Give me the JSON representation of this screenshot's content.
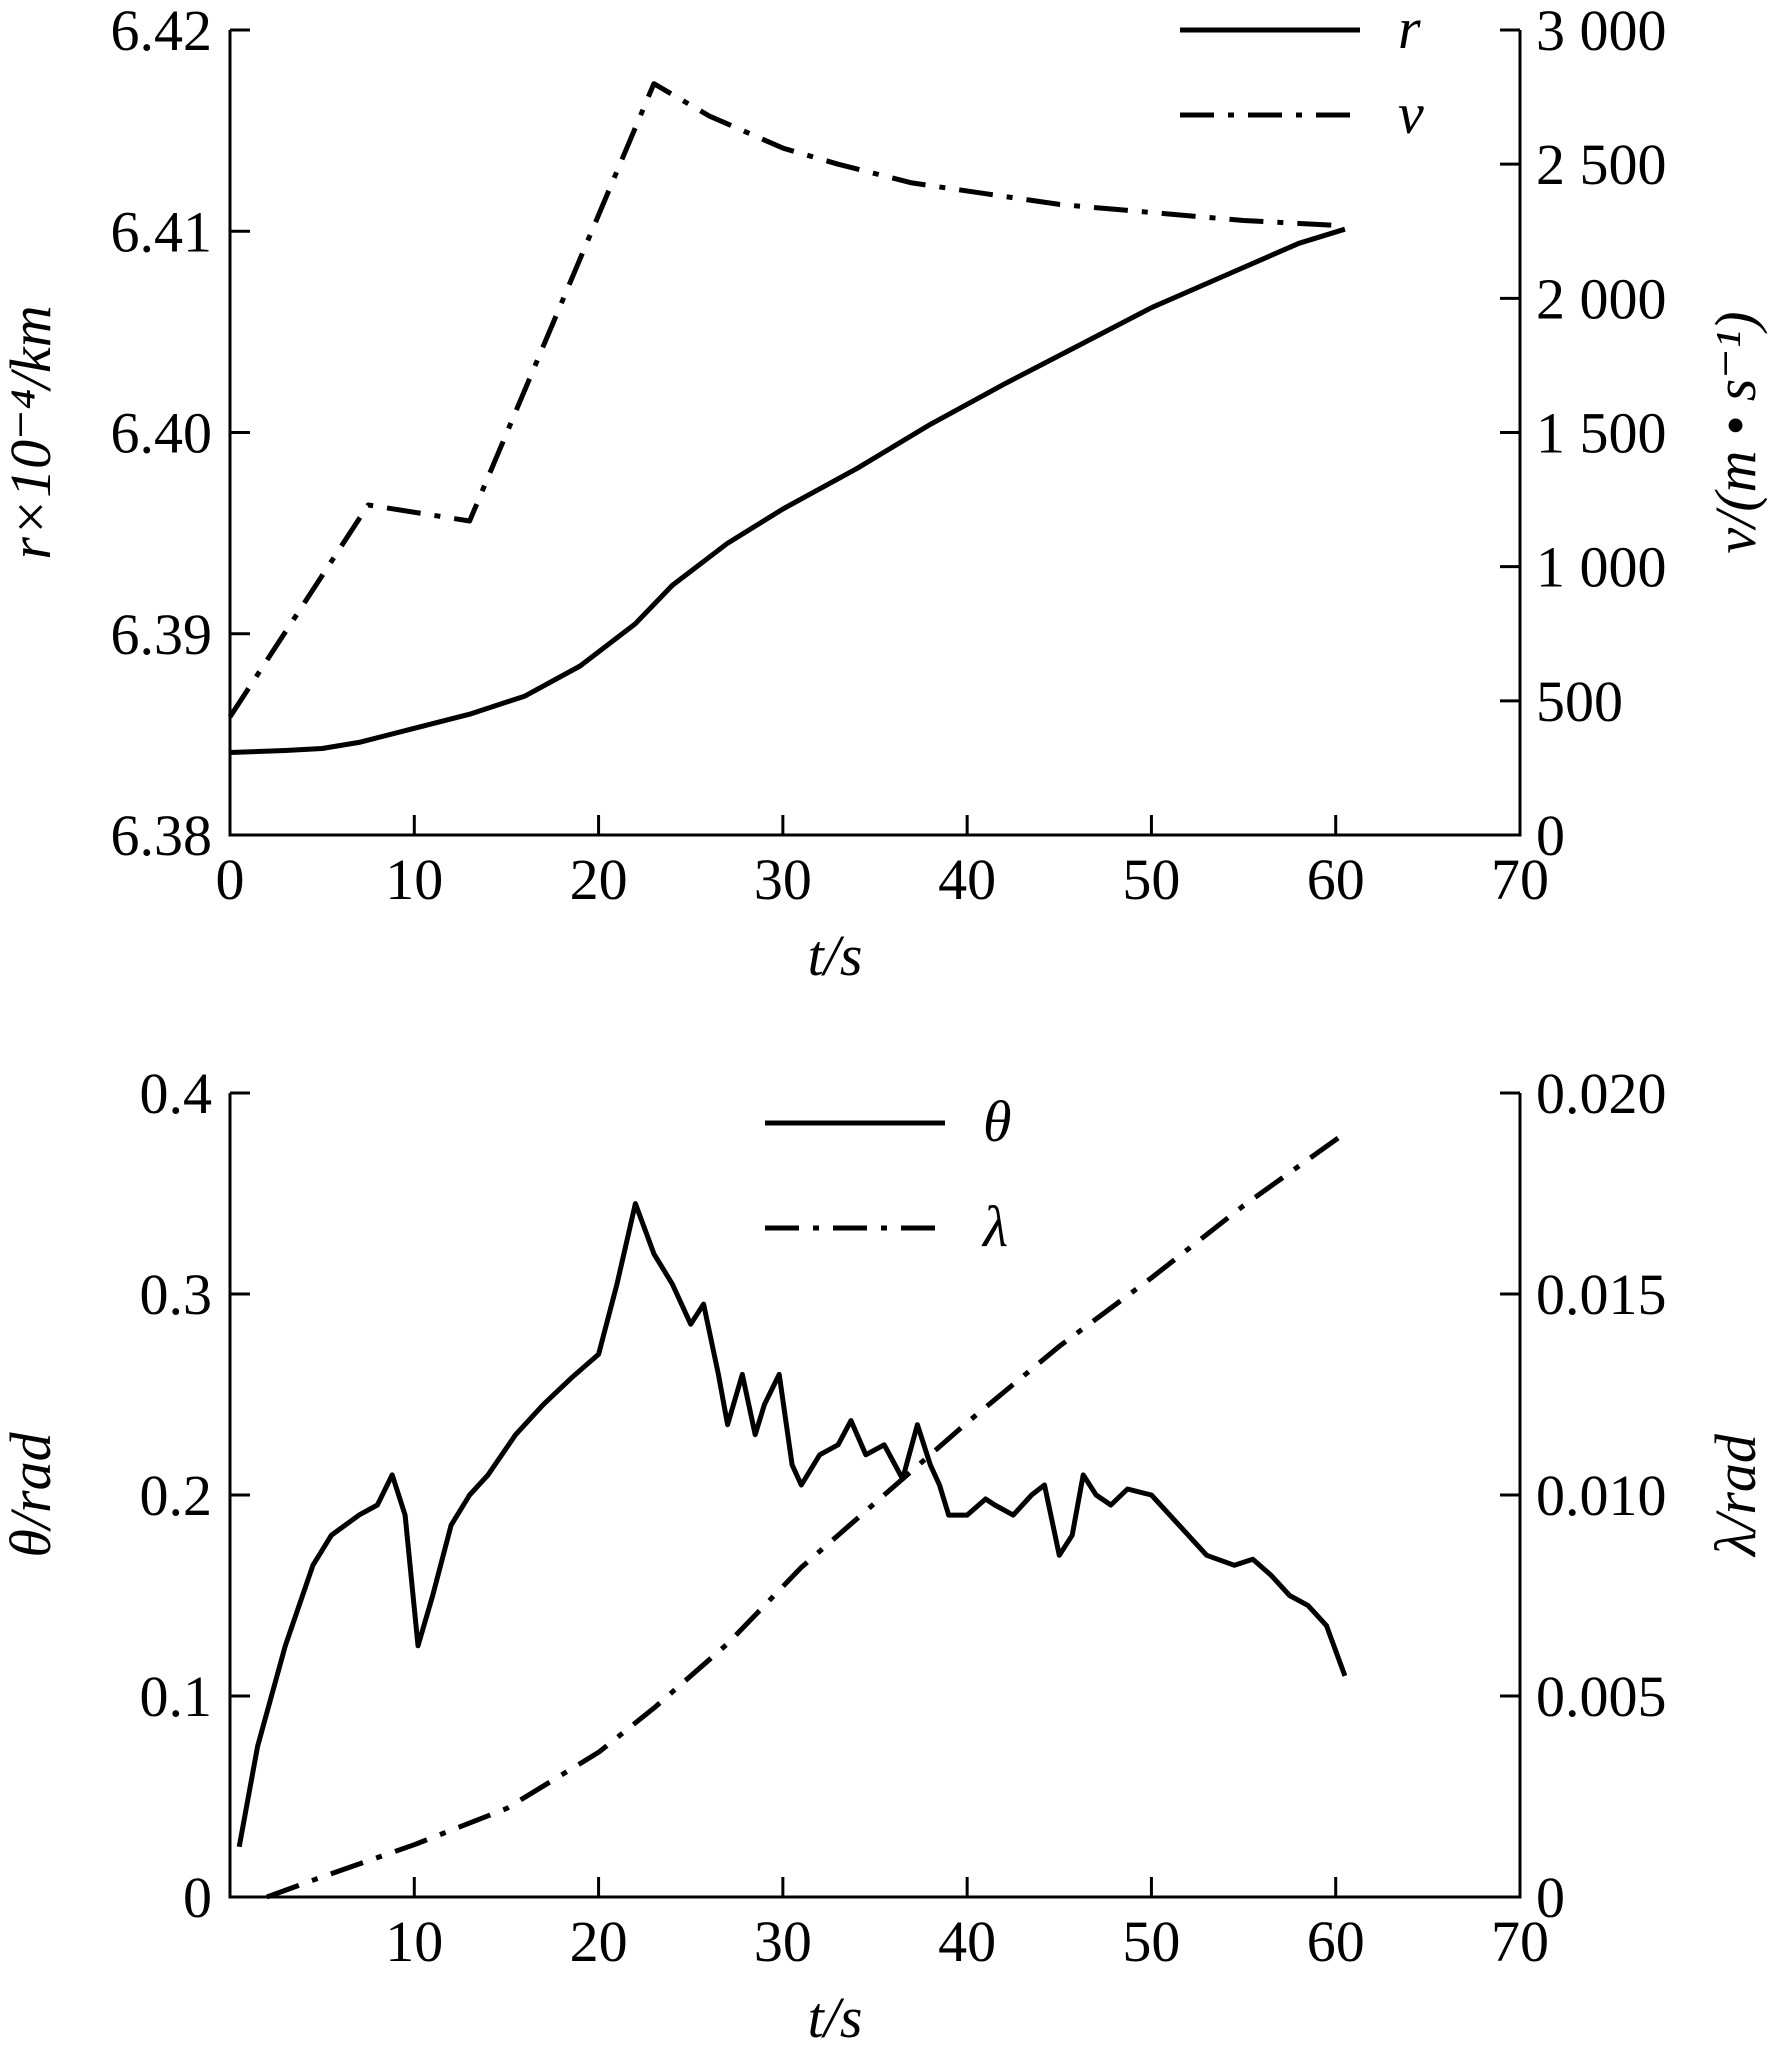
{
  "chart_data": [
    {
      "type": "line",
      "title": "",
      "xlabel": "t/s",
      "ylabel_left": "r×10⁻⁴/km",
      "ylabel_right": "v/(m • s⁻¹)",
      "xlim": [
        0,
        70
      ],
      "ylim_left": [
        6.38,
        6.42
      ],
      "ylim_right": [
        0,
        3000
      ],
      "grid": false,
      "legend_position": "top-right",
      "x_ticks": [
        "0",
        "10",
        "20",
        "30",
        "40",
        "50",
        "60",
        "70"
      ],
      "y_left_ticks": [
        "6.38",
        "6.39",
        "6.40",
        "6.41",
        "6.42"
      ],
      "y_right_ticks": [
        "0",
        "500",
        "1 000",
        "1 500",
        "2 000",
        "2 500",
        "3 000"
      ],
      "series": [
        {
          "name": "r",
          "axis": "left",
          "style": "solid",
          "x": [
            0,
            3,
            5,
            7,
            10,
            13,
            16,
            19,
            22,
            24,
            27,
            30,
            34,
            38,
            42,
            46,
            50,
            54,
            58,
            60.5
          ],
          "y": [
            6.3841,
            6.3842,
            6.3843,
            6.3846,
            6.3853,
            6.386,
            6.3869,
            6.3884,
            6.3905,
            6.3924,
            6.3945,
            6.3962,
            6.3982,
            6.4004,
            6.4024,
            6.4043,
            6.4062,
            6.4078,
            6.4094,
            6.4101
          ]
        },
        {
          "name": "v",
          "axis": "right",
          "style": "dash-dot",
          "x": [
            0,
            7.5,
            13,
            23,
            26,
            30,
            33,
            37,
            41,
            45,
            50,
            55,
            60.5
          ],
          "y": [
            440,
            1230,
            1170,
            2800,
            2680,
            2560,
            2500,
            2430,
            2390,
            2350,
            2320,
            2290,
            2270
          ]
        }
      ]
    },
    {
      "type": "line",
      "title": "",
      "xlabel": "t/s",
      "ylabel_left": "θ/rad",
      "ylabel_right": "λ/rad",
      "xlim": [
        0,
        70
      ],
      "ylim_left": [
        0,
        0.4
      ],
      "ylim_right": [
        0,
        0.02
      ],
      "grid": false,
      "legend_position": "top-center",
      "x_ticks": [
        "10",
        "20",
        "30",
        "40",
        "50",
        "60",
        "70"
      ],
      "y_left_ticks": [
        "0",
        "0.1",
        "0.2",
        "0.3",
        "0.4"
      ],
      "y_right_ticks": [
        "0",
        "0.005",
        "0.010",
        "0.015",
        "0.020"
      ],
      "series": [
        {
          "name": "θ",
          "axis": "left",
          "style": "solid",
          "x": [
            0.5,
            1.5,
            3,
            4.5,
            5.5,
            7,
            8,
            8.8,
            9.5,
            10.2,
            11,
            12,
            13,
            14,
            15.5,
            17,
            18.5,
            20,
            21,
            22,
            23,
            24,
            25,
            25.7,
            26.5,
            27,
            27.8,
            28.5,
            29,
            29.8,
            30.5,
            31,
            32,
            33,
            33.7,
            34.5,
            35.5,
            36.5,
            37.3,
            38,
            38.5,
            39,
            40,
            41,
            41.5,
            42.5,
            43.5,
            44.2,
            45,
            45.7,
            46.3,
            47,
            47.8,
            48.7,
            50,
            51.5,
            53,
            54.5,
            55.5,
            56.5,
            57.5,
            58.5,
            59.5,
            60.5
          ],
          "y": [
            0.025,
            0.075,
            0.125,
            0.165,
            0.18,
            0.19,
            0.195,
            0.21,
            0.19,
            0.125,
            0.15,
            0.185,
            0.2,
            0.21,
            0.23,
            0.245,
            0.258,
            0.27,
            0.305,
            0.345,
            0.32,
            0.305,
            0.285,
            0.295,
            0.26,
            0.235,
            0.26,
            0.23,
            0.245,
            0.26,
            0.215,
            0.205,
            0.22,
            0.225,
            0.237,
            0.22,
            0.225,
            0.208,
            0.235,
            0.215,
            0.205,
            0.19,
            0.19,
            0.198,
            0.195,
            0.19,
            0.2,
            0.205,
            0.17,
            0.18,
            0.21,
            0.2,
            0.195,
            0.203,
            0.2,
            0.185,
            0.17,
            0.165,
            0.168,
            0.16,
            0.15,
            0.145,
            0.135,
            0.11
          ]
        },
        {
          "name": "λ",
          "axis": "right",
          "style": "dash-dot",
          "x": [
            2,
            5,
            10,
            15,
            20,
            23,
            27,
            31,
            35,
            40,
            45,
            50,
            55,
            60.5
          ],
          "y": [
            0,
            0.0005,
            0.0013,
            0.0022,
            0.0036,
            0.0047,
            0.0063,
            0.0082,
            0.0098,
            0.0118,
            0.0137,
            0.0154,
            0.0172,
            0.019
          ]
        }
      ]
    }
  ]
}
